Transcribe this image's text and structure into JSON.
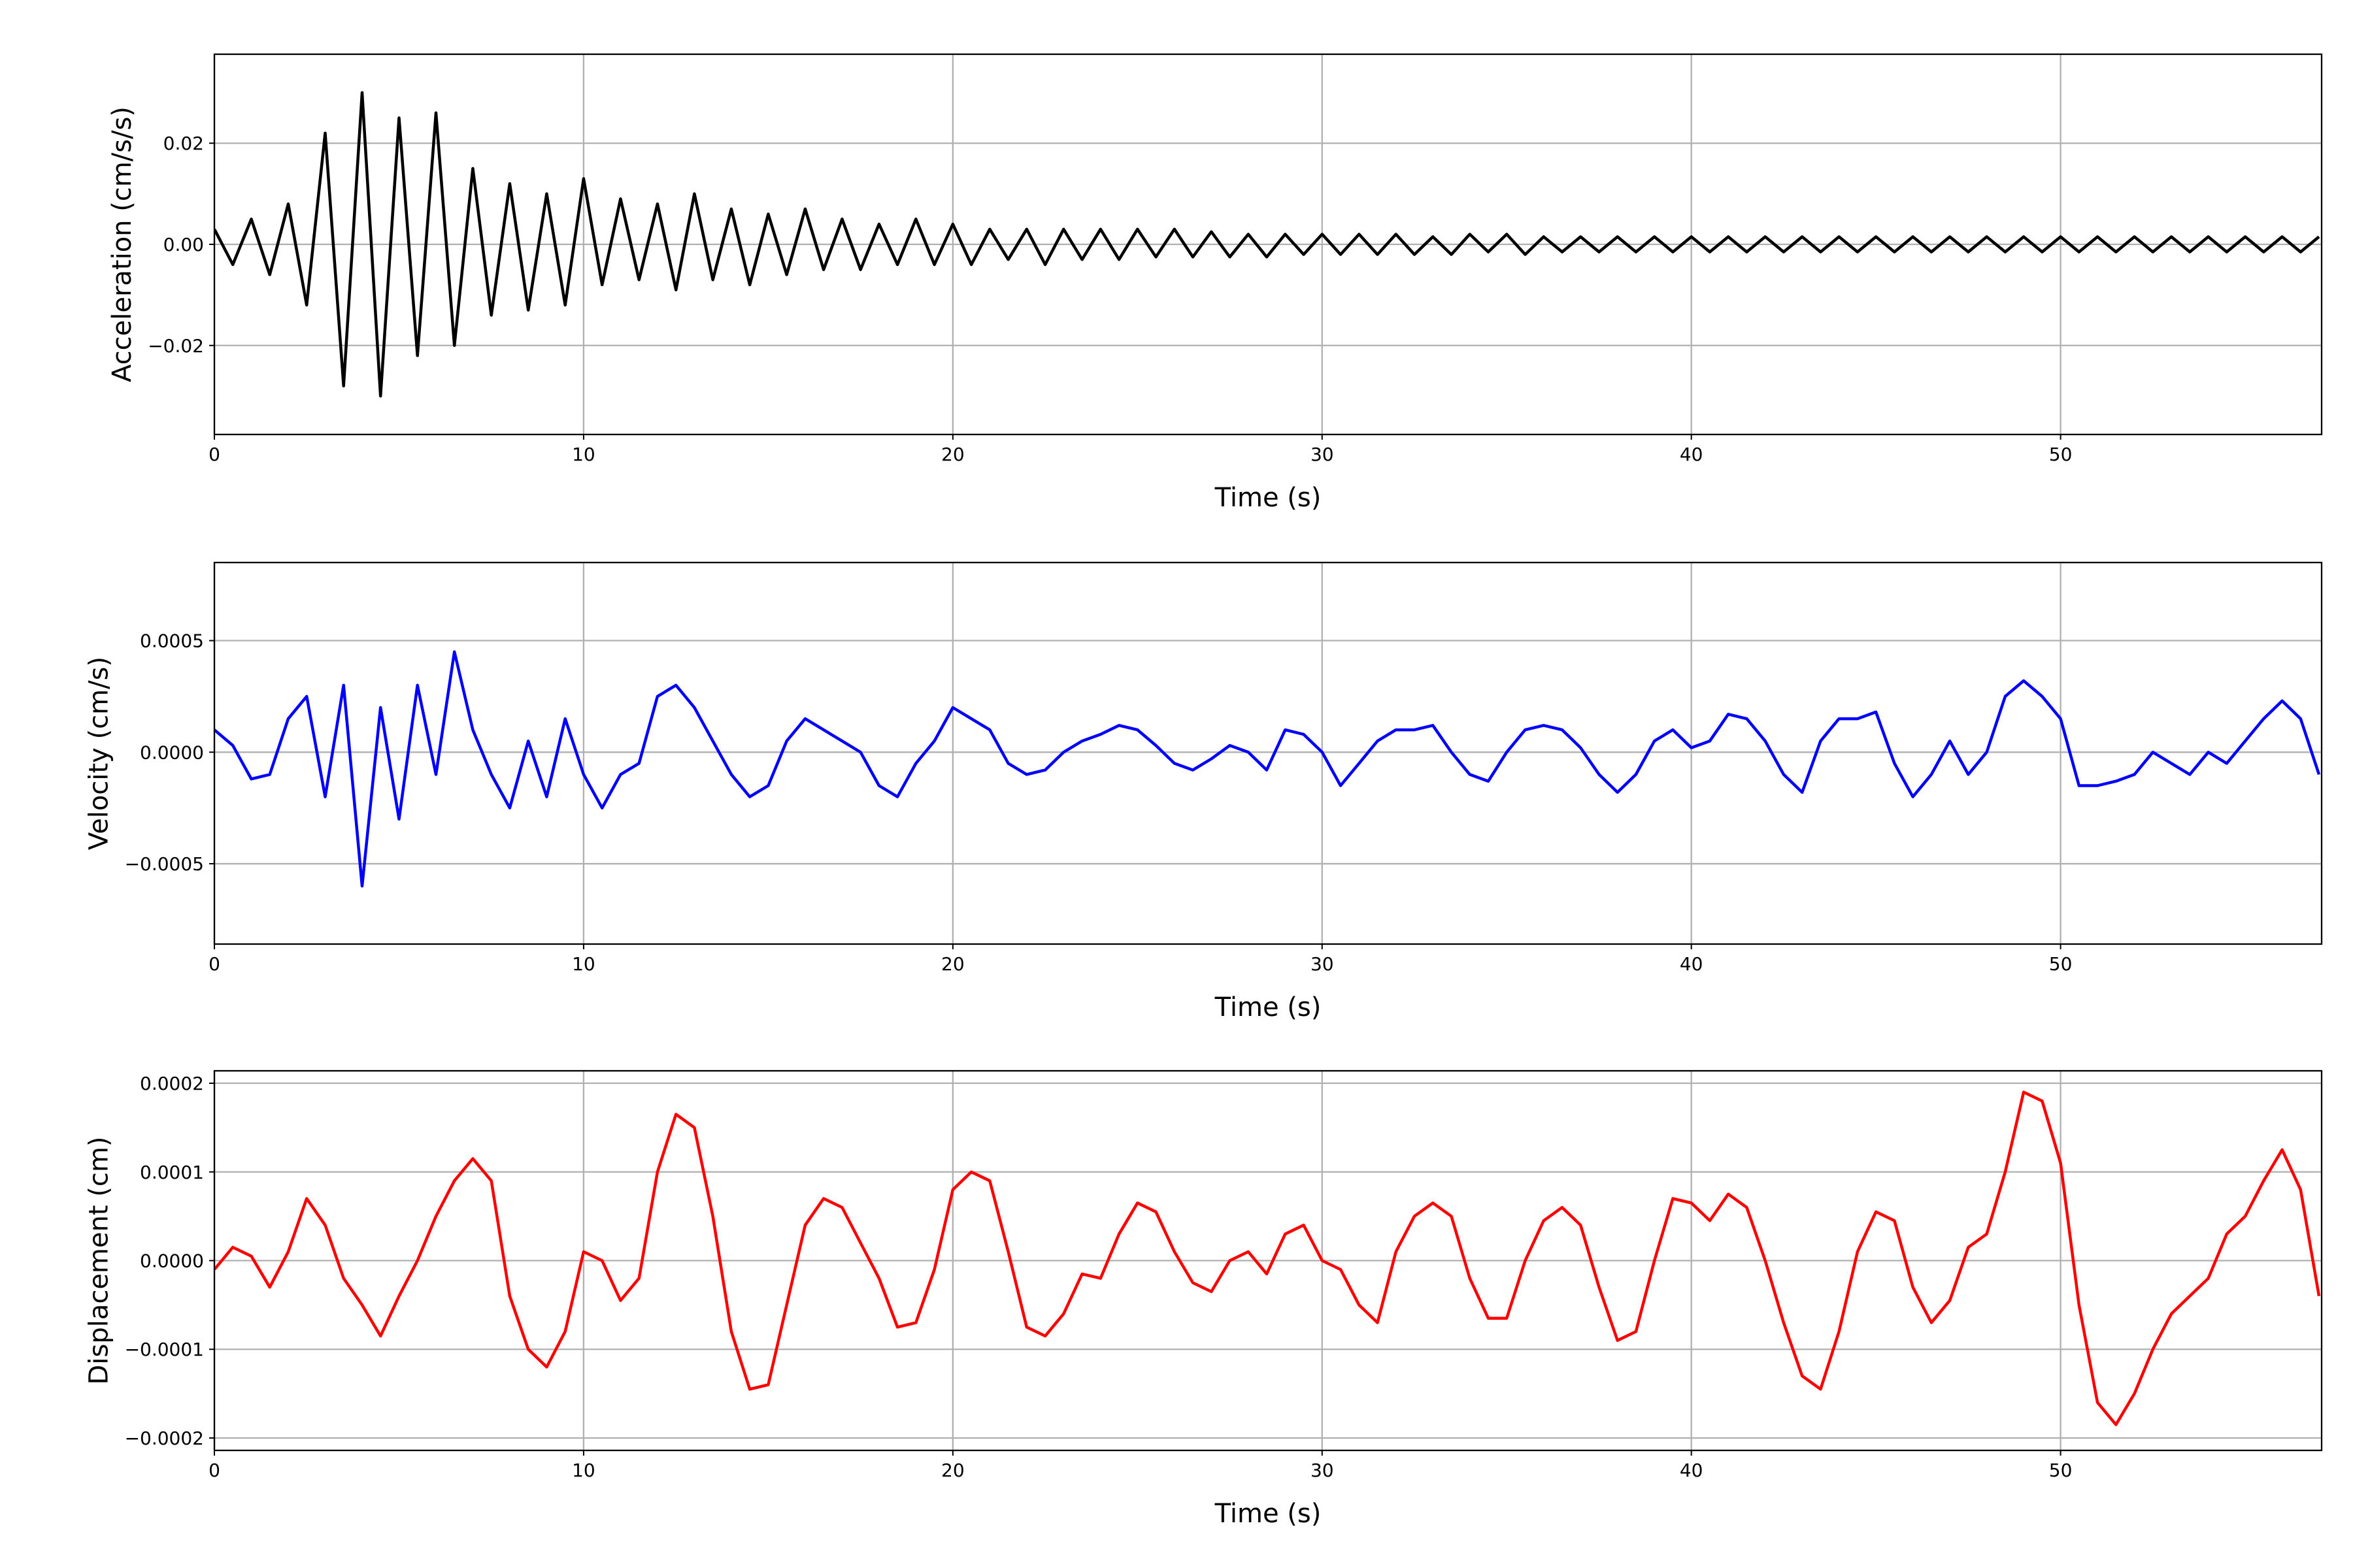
{
  "chart_data": [
    {
      "type": "line",
      "ylabel": "Acceleration (cm/s/s)",
      "xlabel": "Time (s)",
      "x": [
        0,
        0.5,
        1,
        1.5,
        2,
        2.5,
        3,
        3.5,
        4,
        4.5,
        5,
        5.5,
        6,
        6.5,
        7,
        7.5,
        8,
        8.5,
        9,
        9.5,
        10,
        10.5,
        11,
        11.5,
        12,
        12.5,
        13,
        13.5,
        14,
        14.5,
        15,
        15.5,
        16,
        16.5,
        17,
        17.5,
        18,
        18.5,
        19,
        19.5,
        20,
        20.5,
        21,
        21.5,
        22,
        22.5,
        23,
        23.5,
        24,
        24.5,
        25,
        25.5,
        26,
        26.5,
        27,
        27.5,
        28,
        28.5,
        29,
        29.5,
        30,
        30.5,
        31,
        31.5,
        32,
        32.5,
        33,
        33.5,
        34,
        34.5,
        35,
        35.5,
        36,
        36.5,
        37,
        37.5,
        38,
        38.5,
        39,
        39.5,
        40,
        40.5,
        41,
        41.5,
        42,
        42.5,
        43,
        43.5,
        44,
        44.5,
        45,
        45.5,
        46,
        46.5,
        47,
        47.5,
        48,
        48.5,
        49,
        49.5,
        50,
        50.5,
        51,
        51.5,
        52,
        52.5,
        53,
        53.5,
        54,
        54.5,
        55,
        55.5,
        56,
        56.5,
        57
      ],
      "series": [
        {
          "color": "#000000",
          "values": [
            0.003,
            -0.004,
            0.005,
            -0.006,
            0.008,
            -0.012,
            0.022,
            -0.028,
            0.03,
            -0.03,
            0.025,
            -0.022,
            0.026,
            -0.02,
            0.015,
            -0.014,
            0.012,
            -0.013,
            0.01,
            -0.012,
            0.013,
            -0.008,
            0.009,
            -0.007,
            0.008,
            -0.009,
            0.01,
            -0.007,
            0.007,
            -0.008,
            0.006,
            -0.006,
            0.007,
            -0.005,
            0.005,
            -0.005,
            0.004,
            -0.004,
            0.005,
            -0.004,
            0.004,
            -0.004,
            0.003,
            -0.003,
            0.003,
            -0.004,
            0.003,
            -0.003,
            0.003,
            -0.003,
            0.003,
            -0.0025,
            0.003,
            -0.0025,
            0.0025,
            -0.0025,
            0.002,
            -0.0025,
            0.002,
            -0.002,
            0.002,
            -0.002,
            0.002,
            -0.002,
            0.002,
            -0.002,
            0.0015,
            -0.002,
            0.002,
            -0.0015,
            0.002,
            -0.002,
            0.0015,
            -0.0015,
            0.0015,
            -0.0015,
            0.0015,
            -0.0015,
            0.0015,
            -0.0015,
            0.0015,
            -0.0015,
            0.0015,
            -0.0015,
            0.0015,
            -0.0015,
            0.0015,
            -0.0015,
            0.0015,
            -0.0015,
            0.0015,
            -0.0015,
            0.0015,
            -0.0015,
            0.0015,
            -0.0015,
            0.0015,
            -0.0015,
            0.0015,
            -0.0015,
            0.0015,
            -0.0015,
            0.0015,
            -0.0015,
            0.0015,
            -0.0015,
            0.0015,
            -0.0015,
            0.0015,
            -0.0015,
            0.0015,
            -0.0015,
            0.0015,
            -0.0015,
            0.0015
          ]
        }
      ],
      "xlim": [
        0,
        57.07
      ],
      "xticks": [
        0,
        10,
        20,
        30,
        40,
        50
      ],
      "ylim": [
        -0.0376,
        0.0376
      ],
      "yticks": [
        {
          "value": -0.02,
          "label": "−0.02"
        },
        {
          "value": 0,
          "label": "0.00"
        },
        {
          "value": 0.02,
          "label": "0.02"
        }
      ],
      "grid": true
    },
    {
      "type": "line",
      "ylabel": "Velocity (cm/s)",
      "xlabel": "Time (s)",
      "x": [
        0,
        0.5,
        1,
        1.5,
        2,
        2.5,
        3,
        3.5,
        4,
        4.5,
        5,
        5.5,
        6,
        6.5,
        7,
        7.5,
        8,
        8.5,
        9,
        9.5,
        10,
        10.5,
        11,
        11.5,
        12,
        12.5,
        13,
        13.5,
        14,
        14.5,
        15,
        15.5,
        16,
        16.5,
        17,
        17.5,
        18,
        18.5,
        19,
        19.5,
        20,
        20.5,
        21,
        21.5,
        22,
        22.5,
        23,
        23.5,
        24,
        24.5,
        25,
        25.5,
        26,
        26.5,
        27,
        27.5,
        28,
        28.5,
        29,
        29.5,
        30,
        30.5,
        31,
        31.5,
        32,
        32.5,
        33,
        33.5,
        34,
        34.5,
        35,
        35.5,
        36,
        36.5,
        37,
        37.5,
        38,
        38.5,
        39,
        39.5,
        40,
        40.5,
        41,
        41.5,
        42,
        42.5,
        43,
        43.5,
        44,
        44.5,
        45,
        45.5,
        46,
        46.5,
        47,
        47.5,
        48,
        48.5,
        49,
        49.5,
        50,
        50.5,
        51,
        51.5,
        52,
        52.5,
        53,
        53.5,
        54,
        54.5,
        55,
        55.5,
        56,
        56.5,
        57
      ],
      "series": [
        {
          "color": "#0000ff",
          "values": [
            0.0001,
            3e-05,
            -0.00012,
            -0.0001,
            0.00015,
            0.00025,
            -0.0002,
            0.0003,
            -0.0006,
            0.0002,
            -0.0003,
            0.0003,
            -0.0001,
            0.00045,
            0.0001,
            -0.0001,
            -0.00025,
            5e-05,
            -0.0002,
            0.00015,
            -0.0001,
            -0.00025,
            -0.0001,
            -5e-05,
            0.00025,
            0.0003,
            0.0002,
            5e-05,
            -0.0001,
            -0.0002,
            -0.00015,
            5e-05,
            0.00015,
            0.0001,
            5e-05,
            0,
            -0.00015,
            -0.0002,
            -5e-05,
            5e-05,
            0.0002,
            0.00015,
            0.0001,
            -5e-05,
            -0.0001,
            -8e-05,
            0,
            5e-05,
            8e-05,
            0.00012,
            0.0001,
            3e-05,
            -5e-05,
            -8e-05,
            -3e-05,
            3e-05,
            0,
            -8e-05,
            0.0001,
            8e-05,
            0,
            -0.00015,
            -5e-05,
            5e-05,
            0.0001,
            0.0001,
            0.00012,
            0,
            -0.0001,
            -0.00013,
            0,
            0.0001,
            0.00012,
            0.0001,
            2e-05,
            -0.0001,
            -0.00018,
            -0.0001,
            5e-05,
            0.0001,
            2e-05,
            5e-05,
            0.00017,
            0.00015,
            5e-05,
            -0.0001,
            -0.00018,
            5e-05,
            0.00015,
            0.00015,
            0.00018,
            -5e-05,
            -0.0002,
            -0.0001,
            5e-05,
            -0.0001,
            0,
            0.00025,
            0.00032,
            0.00025,
            0.00015,
            -0.00015,
            -0.00015,
            -0.00013,
            -0.0001,
            0,
            -5e-05,
            -0.0001,
            0,
            -5e-05,
            5e-05,
            0.00015,
            0.00023,
            0.00015,
            -0.0001
          ]
        }
      ],
      "xlim": [
        0,
        57.07
      ],
      "xticks": [
        0,
        10,
        20,
        30,
        40,
        50
      ],
      "ylim": [
        -0.00086,
        0.00085
      ],
      "yticks": [
        {
          "value": -0.0005,
          "label": "−0.0005"
        },
        {
          "value": 0,
          "label": "0.0000"
        },
        {
          "value": 0.0005,
          "label": "0.0005"
        }
      ],
      "grid": true
    },
    {
      "type": "line",
      "ylabel": "Displacement (cm)",
      "xlabel": "Time (s)",
      "x": [
        0,
        0.5,
        1,
        1.5,
        2,
        2.5,
        3,
        3.5,
        4,
        4.5,
        5,
        5.5,
        6,
        6.5,
        7,
        7.5,
        8,
        8.5,
        9,
        9.5,
        10,
        10.5,
        11,
        11.5,
        12,
        12.5,
        13,
        13.5,
        14,
        14.5,
        15,
        15.5,
        16,
        16.5,
        17,
        17.5,
        18,
        18.5,
        19,
        19.5,
        20,
        20.5,
        21,
        21.5,
        22,
        22.5,
        23,
        23.5,
        24,
        24.5,
        25,
        25.5,
        26,
        26.5,
        27,
        27.5,
        28,
        28.5,
        29,
        29.5,
        30,
        30.5,
        31,
        31.5,
        32,
        32.5,
        33,
        33.5,
        34,
        34.5,
        35,
        35.5,
        36,
        36.5,
        37,
        37.5,
        38,
        38.5,
        39,
        39.5,
        40,
        40.5,
        41,
        41.5,
        42,
        42.5,
        43,
        43.5,
        44,
        44.5,
        45,
        45.5,
        46,
        46.5,
        47,
        47.5,
        48,
        48.5,
        49,
        49.5,
        50,
        50.5,
        51,
        51.5,
        52,
        52.5,
        53,
        53.5,
        54,
        54.5,
        55,
        55.5,
        56,
        56.5,
        57
      ],
      "series": [
        {
          "color": "#ff0000",
          "values": [
            -1e-05,
            1.5e-05,
            5e-06,
            -3e-05,
            1e-05,
            7e-05,
            4e-05,
            -2e-05,
            -5e-05,
            -8.5e-05,
            -4e-05,
            0,
            5e-05,
            9e-05,
            0.000115,
            9e-05,
            -4e-05,
            -0.0001,
            -0.00012,
            -8e-05,
            1e-05,
            0,
            -4.5e-05,
            -2e-05,
            0.0001,
            0.000165,
            0.00015,
            5e-05,
            -8e-05,
            -0.000145,
            -0.00014,
            -5e-05,
            4e-05,
            7e-05,
            6e-05,
            2e-05,
            -2e-05,
            -7.5e-05,
            -7e-05,
            -1e-05,
            8e-05,
            0.0001,
            9e-05,
            1e-05,
            -7.5e-05,
            -8.5e-05,
            -6e-05,
            -1.5e-05,
            -2e-05,
            3e-05,
            6.5e-05,
            5.5e-05,
            1e-05,
            -2.5e-05,
            -3.5e-05,
            0,
            1e-05,
            -1.5e-05,
            3e-05,
            4e-05,
            0,
            -1e-05,
            -5e-05,
            -7e-05,
            1e-05,
            5e-05,
            6.5e-05,
            5e-05,
            -2e-05,
            -6.5e-05,
            -6.5e-05,
            0,
            4.5e-05,
            6e-05,
            4e-05,
            -3e-05,
            -9e-05,
            -8e-05,
            0,
            7e-05,
            6.5e-05,
            4.5e-05,
            7.5e-05,
            6e-05,
            0,
            -7e-05,
            -0.00013,
            -0.000145,
            -8e-05,
            1e-05,
            5.5e-05,
            4.5e-05,
            -3e-05,
            -7e-05,
            -4.5e-05,
            1.5e-05,
            3e-05,
            0.0001,
            0.00019,
            0.00018,
            0.00011,
            -5e-05,
            -0.00016,
            -0.000185,
            -0.00015,
            -0.0001,
            -6e-05,
            -4e-05,
            -2e-05,
            3e-05,
            5e-05,
            9e-05,
            0.000125,
            8e-05,
            -4e-05
          ]
        }
      ],
      "xlim": [
        0,
        57.07
      ],
      "xticks": [
        0,
        10,
        20,
        30,
        40,
        50
      ],
      "ylim": [
        -0.000214,
        0.000214
      ],
      "yticks": [
        {
          "value": -0.0002,
          "label": "−0.0002"
        },
        {
          "value": -0.0001,
          "label": "−0.0001"
        },
        {
          "value": 0,
          "label": "0.0000"
        },
        {
          "value": 0.0001,
          "label": "0.0001"
        },
        {
          "value": 0.0002,
          "label": "0.0002"
        }
      ],
      "grid": true
    }
  ]
}
